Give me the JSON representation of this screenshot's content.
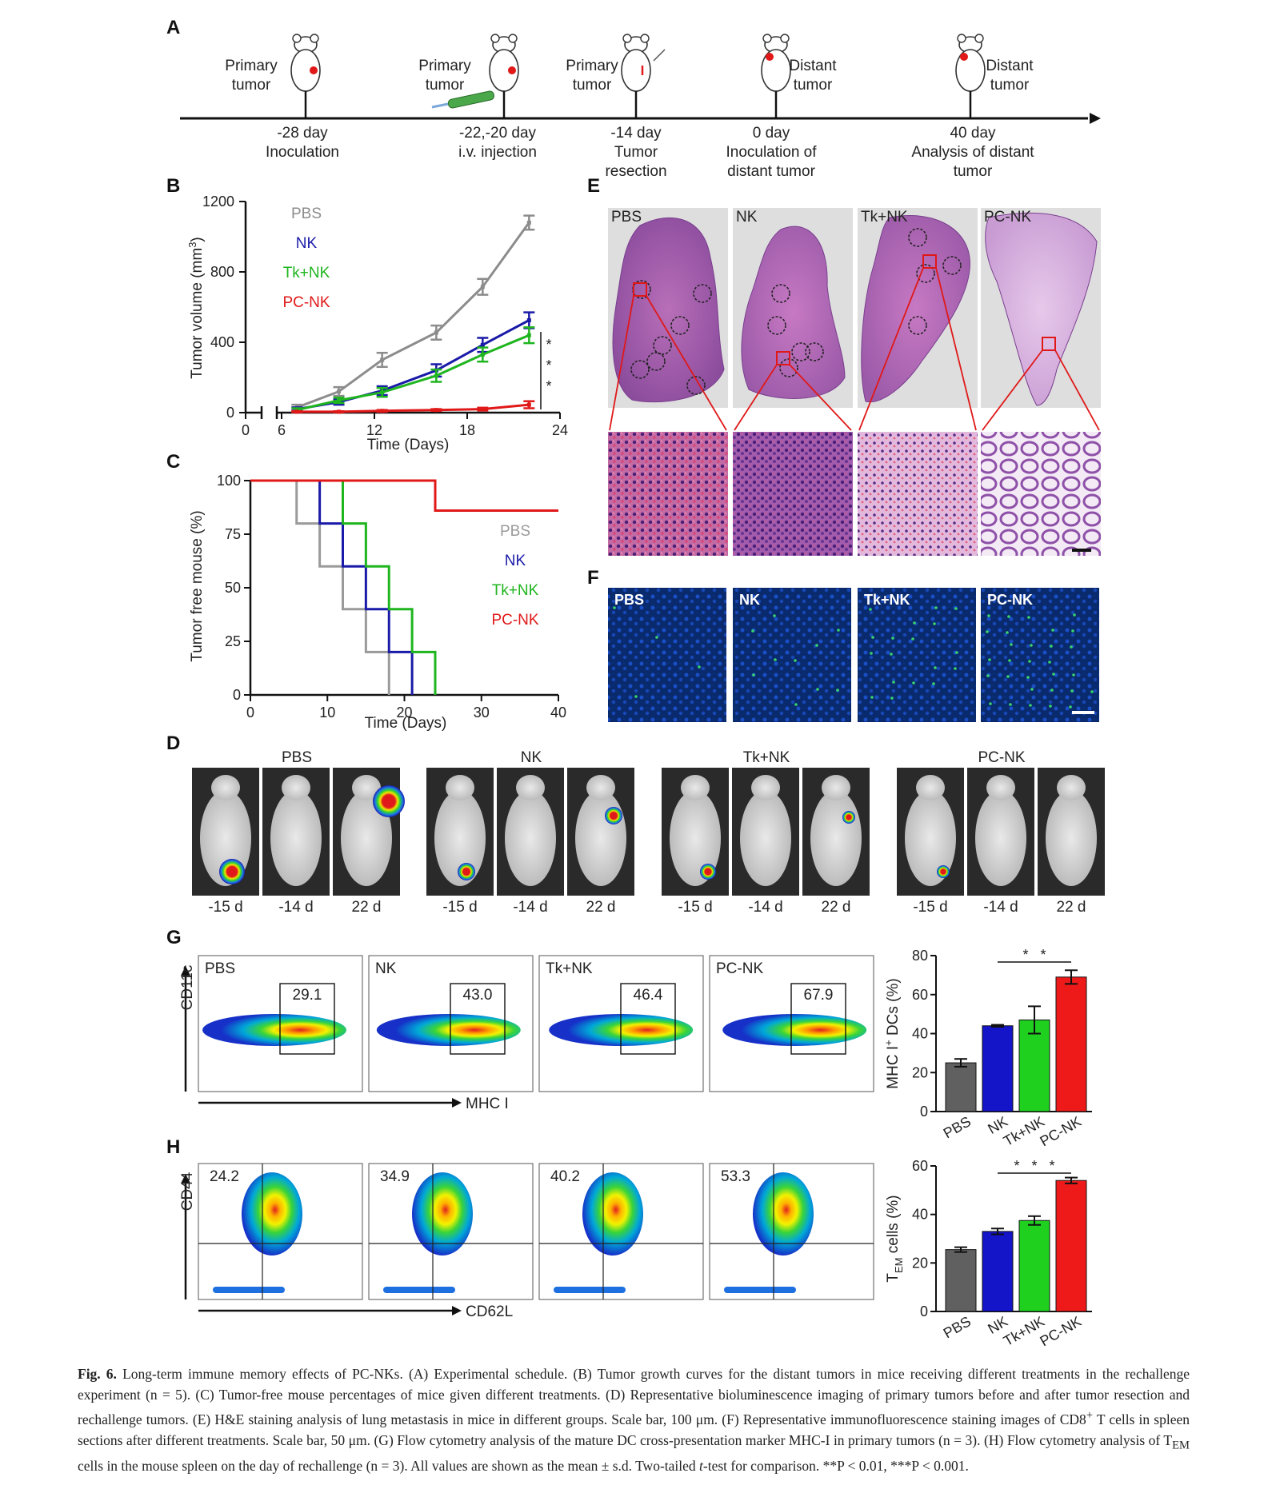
{
  "panels": {
    "A": {
      "label": "A",
      "events": [
        {
          "mouse_label_1": "Primary",
          "mouse_label_2": "tumor",
          "day": "-28 day",
          "desc_1": "Inoculation",
          "desc_2": ""
        },
        {
          "mouse_label_1": "Primary",
          "mouse_label_2": "tumor",
          "day": "-22,-20 day",
          "desc_1": "i.v. injection",
          "desc_2": ""
        },
        {
          "mouse_label_1": "Primary",
          "mouse_label_2": "tumor",
          "day": "-14 day",
          "desc_1": "Tumor",
          "desc_2": "resection"
        },
        {
          "mouse_label_1": "Distant",
          "mouse_label_2": "tumor",
          "day": "0 day",
          "desc_1": "Inoculation of",
          "desc_2": "distant tumor"
        },
        {
          "mouse_label_1": "Distant",
          "mouse_label_2": "tumor",
          "day": "40 day",
          "desc_1": "Analysis of distant",
          "desc_2": "tumor"
        }
      ]
    },
    "B": {
      "label": "B",
      "stars": "* * *"
    },
    "C": {
      "label": "C"
    },
    "D": {
      "label": "D",
      "groups": [
        "PBS",
        "NK",
        "Tk+NK",
        "PC-NK"
      ],
      "days": [
        "-15 d",
        "-14 d",
        "22 d"
      ]
    },
    "E": {
      "label": "E",
      "groups": [
        "PBS",
        "NK",
        "Tk+NK",
        "PC-NK"
      ]
    },
    "F": {
      "label": "F",
      "groups": [
        "PBS",
        "NK",
        "Tk+NK",
        "PC-NK"
      ]
    },
    "G": {
      "label": "G",
      "groups": [
        "PBS",
        "NK",
        "Tk+NK",
        "PC-NK"
      ],
      "gate_values": [
        "29.1",
        "43.0",
        "46.4",
        "67.9"
      ],
      "y_axis": "CD11c",
      "x_axis": "MHC I",
      "sig": "* *"
    },
    "H": {
      "label": "H",
      "groups": [
        "PBS",
        "NK",
        "Tk+NK",
        "PC-NK"
      ],
      "quadrant_values": [
        "24.2",
        "34.9",
        "40.2",
        "53.3"
      ],
      "y_axis": "CD44",
      "x_axis": "CD62L",
      "sig": "* * *"
    }
  },
  "chart_data": [
    {
      "id": "B",
      "type": "line",
      "xlabel": "Time (Days)",
      "ylabel": "Tumor volume (mm³)",
      "ylabel_text": "Tumor volume (mm",
      "ylabel_sup": "3",
      "ylabel_end": ")",
      "x_ticks": [
        "0",
        "6",
        "12",
        "18",
        "24"
      ],
      "y_ticks": [
        "0",
        "400",
        "800",
        "1200"
      ],
      "xlim": [
        6,
        24
      ],
      "ylim": [
        0,
        1200
      ],
      "x": [
        7,
        9.7,
        12.5,
        16,
        19,
        22
      ],
      "series": [
        {
          "name": "PBS",
          "color": "#8c8c8c",
          "values": [
            30,
            120,
            300,
            455,
            715,
            1080
          ],
          "err": [
            15,
            25,
            40,
            40,
            45,
            40
          ]
        },
        {
          "name": "NK",
          "color": "#1a1aa8",
          "values": [
            20,
            60,
            125,
            240,
            385,
            525
          ],
          "err": [
            10,
            15,
            25,
            35,
            40,
            45
          ]
        },
        {
          "name": "Tk+NK",
          "color": "#1fb51f",
          "values": [
            15,
            70,
            115,
            210,
            330,
            440
          ],
          "err": [
            10,
            15,
            25,
            35,
            40,
            45
          ]
        },
        {
          "name": "PC-NK",
          "color": "#e01818",
          "values": [
            5,
            5,
            10,
            15,
            20,
            45
          ],
          "err": [
            3,
            3,
            5,
            5,
            8,
            20
          ]
        }
      ]
    },
    {
      "id": "C",
      "type": "line",
      "step": true,
      "xlabel": "Time (Days)",
      "ylabel": "Tumor free mouse (%)",
      "x_ticks": [
        "0",
        "10",
        "20",
        "30",
        "40"
      ],
      "y_ticks": [
        "0",
        "25",
        "50",
        "75",
        "100"
      ],
      "xlim": [
        0,
        40
      ],
      "ylim": [
        0,
        100
      ],
      "series": [
        {
          "name": "PBS",
          "color": "#9a9a9a",
          "x": [
            0,
            6,
            9,
            12,
            15,
            18
          ],
          "values": [
            100,
            80,
            60,
            40,
            20,
            0
          ]
        },
        {
          "name": "NK",
          "color": "#1a1aa8",
          "x": [
            0,
            9,
            12,
            15,
            18,
            21
          ],
          "values": [
            100,
            80,
            60,
            40,
            20,
            0
          ]
        },
        {
          "name": "Tk+NK",
          "color": "#1fb51f",
          "x": [
            0,
            12,
            15,
            18,
            21,
            24
          ],
          "values": [
            100,
            80,
            60,
            40,
            20,
            0
          ]
        },
        {
          "name": "PC-NK",
          "color": "#e01818",
          "x": [
            0,
            24,
            40
          ],
          "values": [
            100,
            86,
            86
          ]
        }
      ]
    },
    {
      "id": "G",
      "type": "bar",
      "ylabel": "MHC I⁺ DCs (%)",
      "ylabel_text": "MHC I",
      "ylabel_sup": "+",
      "ylabel_end": " DCs (%)",
      "categories": [
        "PBS",
        "NK",
        "Tk+NK",
        "PC-NK"
      ],
      "values": [
        25,
        44,
        47,
        69
      ],
      "err": [
        2,
        0.5,
        7,
        3.5
      ],
      "colors": [
        "#606060",
        "#1414c8",
        "#1fd01f",
        "#ee1a1a"
      ],
      "y_ticks": [
        "0",
        "20",
        "40",
        "60",
        "80"
      ],
      "ylim": [
        0,
        80
      ]
    },
    {
      "id": "H",
      "type": "bar",
      "ylabel": "T_EM cells (%)",
      "ylabel_text": "T",
      "ylabel_sub": "EM",
      "ylabel_end": " cells (%)",
      "categories": [
        "PBS",
        "NK",
        "Tk+NK",
        "PC-NK"
      ],
      "values": [
        25.5,
        33,
        37.5,
        54
      ],
      "err": [
        1,
        1.2,
        1.8,
        1.2
      ],
      "colors": [
        "#606060",
        "#1414c8",
        "#1fd01f",
        "#ee1a1a"
      ],
      "y_ticks": [
        "0",
        "20",
        "40",
        "60"
      ],
      "ylim": [
        0,
        60
      ]
    }
  ],
  "caption": {
    "fig": "Fig. 6.",
    "p1": " Long-term immune memory effects of PC-NKs. (A) Experimental schedule. (B) Tumor growth curves for the distant tumors in mice receiving different treatments in the rechallenge experiment (n = 5). (C) Tumor-free mouse percentages of mice given different treatments. (D) Representative bioluminescence imaging of primary tumors before and after tumor resection and rechallenge tumors. (E) H&E staining analysis of lung metastasis in mice in different groups. Scale bar, 100 μm. (F) Representative immunofluorescence staining images of CD8",
    "sup1": "+",
    "p2": " T cells in spleen sections after different treatments. Scale bar, 50 μm. (G) Flow cytometry analysis of the mature DC cross-presentation marker MHC-I in primary tumors (n = 3). (H) Flow cytometry analysis of T",
    "sub1": "EM",
    "p3": " cells in the mouse spleen on the day of rechallenge (n = 3). All values are shown as the mean ± s.d. Two-tailed ",
    "ital": "t",
    "p4": "-test for comparison. **P < 0.01, ***P < 0.001."
  }
}
